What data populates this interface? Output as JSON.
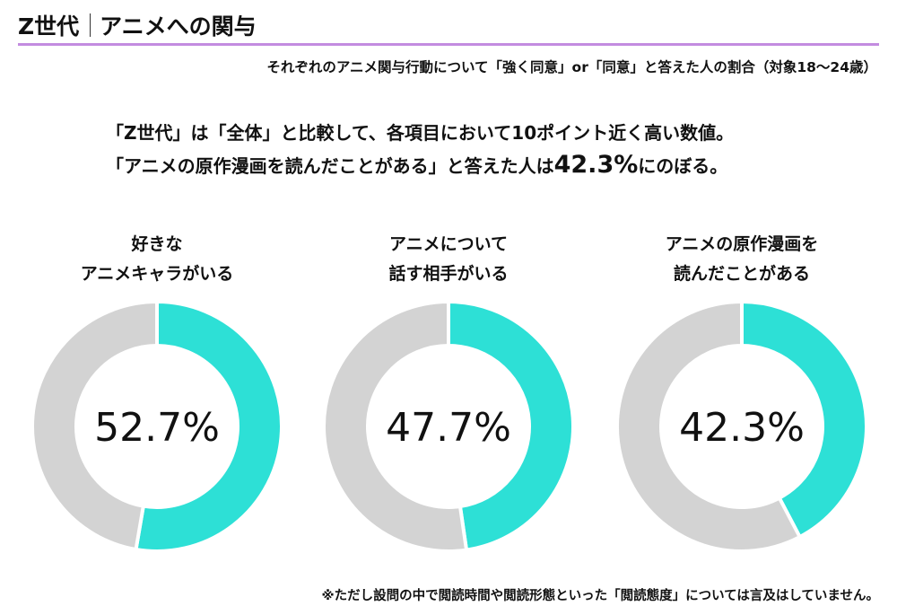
{
  "header": {
    "title_left": "Z世代",
    "title_right": "アニメへの関与",
    "subtitle": "それぞれのアニメ関与行動について「強く同意」or「同意」と答えた人の割合（対象18〜24歳）"
  },
  "headline": {
    "line1": "「Z世代」は「全体」と比較して、各項目において10ポイント近く高い数値。",
    "line2_pre": "「アニメの原作漫画を読んだことがある」と答えた人は",
    "line2_value": "42.3%",
    "line2_post": "にのぼる。"
  },
  "colors": {
    "accent": "#2de0d6",
    "rest": "#d3d3d3",
    "rule": "#c38ce0"
  },
  "chart_data": [
    {
      "type": "pie",
      "donut": true,
      "title_lines": [
        "好きな",
        "アニメキャラがいる"
      ],
      "value": 52.7,
      "center_label": "52.7%"
    },
    {
      "type": "pie",
      "donut": true,
      "title_lines": [
        "アニメについて",
        "話す相手がいる"
      ],
      "value": 47.7,
      "center_label": "47.7%"
    },
    {
      "type": "pie",
      "donut": true,
      "title_lines": [
        "アニメの原作漫画を",
        "読んだことがある"
      ],
      "value": 42.3,
      "center_label": "42.3%"
    }
  ],
  "footnote": "※ただし設問の中で閲読時間や閲読形態といった「閲読態度」については言及はしていません。"
}
